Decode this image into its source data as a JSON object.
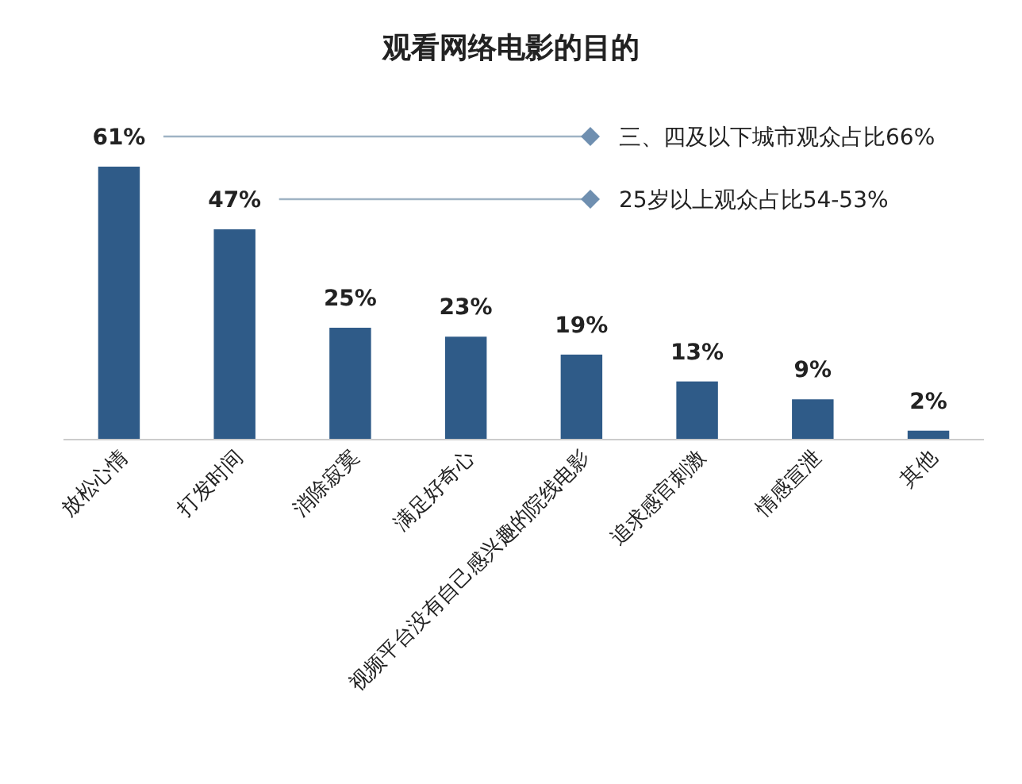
{
  "chart_data": {
    "type": "bar",
    "title": "观看网络电影的目的",
    "categories": [
      "放松心情",
      "打发时间",
      "消除寂寞",
      "满足好奇心",
      "视频平台没有自己感兴趣的院线电影",
      "追求感官刺激",
      "情感宣泄",
      "其他"
    ],
    "values": [
      61,
      47,
      25,
      23,
      19,
      13,
      9,
      2
    ],
    "color": "#2f5b88",
    "value_labels": [
      "61%",
      "47%",
      "25%",
      "23%",
      "19%",
      "13%",
      "9%",
      "2%"
    ],
    "annotations": [
      "三、四及以下城市观众占比66%",
      "25岁以上观众占比54-53%"
    ]
  }
}
